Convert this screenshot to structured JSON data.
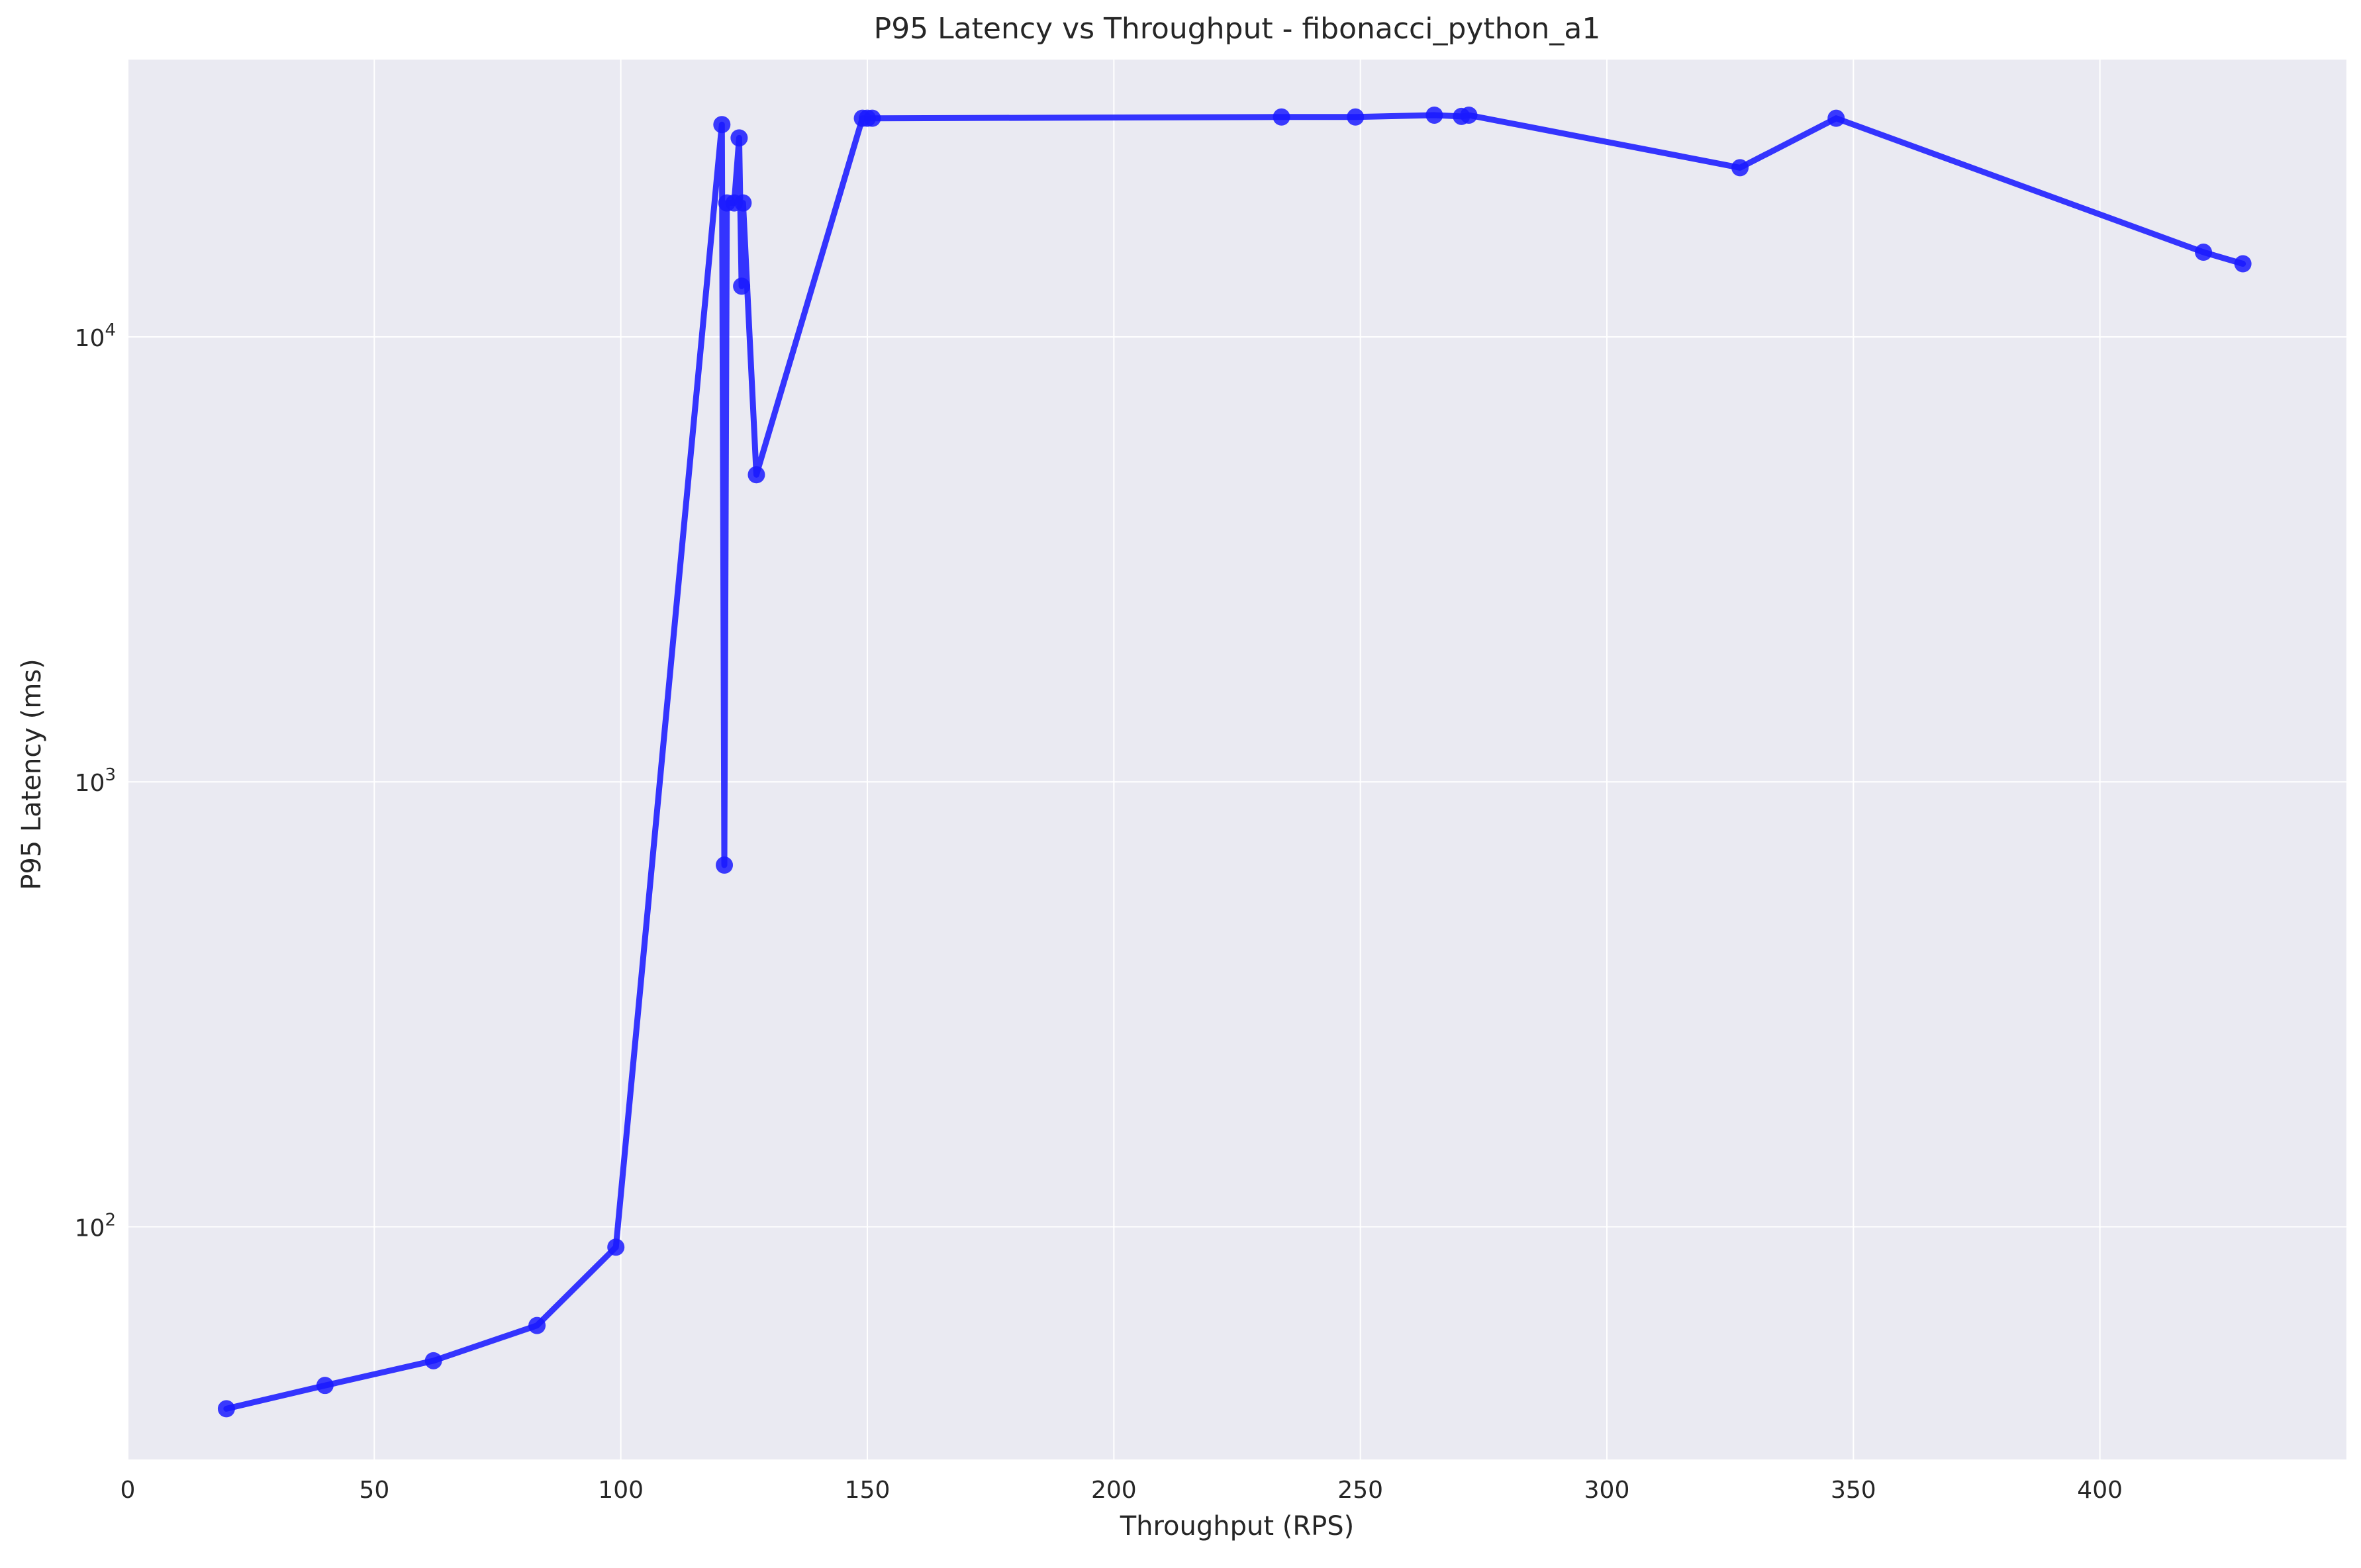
{
  "chart_data": {
    "type": "line",
    "title": "P95 Latency vs Throughput - fibonacci_python_a1",
    "xlabel": "Throughput (RPS)",
    "ylabel": "P95 Latency (ms)",
    "xlim": [
      0,
      450
    ],
    "ylim": [
      30,
      42000
    ],
    "yscale": "log",
    "grid": true,
    "legend": "none",
    "x_ticks": [
      0,
      50,
      100,
      150,
      200,
      250,
      300,
      350,
      400
    ],
    "y_ticks": [
      {
        "value": 100,
        "base": "10",
        "exp": "2"
      },
      {
        "value": 1000,
        "base": "10",
        "exp": "3"
      },
      {
        "value": 10000,
        "base": "10",
        "exp": "4"
      }
    ],
    "colors": {
      "series": "#1a1aff",
      "plot_bg": "#eaeaf2",
      "grid": "#ffffff"
    },
    "series": [
      {
        "points": [
          [
            20,
            39
          ],
          [
            40,
            44
          ],
          [
            62,
            50
          ],
          [
            83,
            60
          ],
          [
            99,
            90
          ],
          [
            120.5,
            30000
          ],
          [
            121,
            650
          ],
          [
            121.5,
            20000
          ],
          [
            123,
            20000
          ],
          [
            124,
            28000
          ],
          [
            124.5,
            13000
          ],
          [
            124.8,
            20000
          ],
          [
            127.5,
            4900
          ],
          [
            149,
            31000
          ],
          [
            150,
            31000
          ],
          [
            151,
            31000
          ],
          [
            234,
            31200
          ],
          [
            249,
            31200
          ],
          [
            265,
            31500
          ],
          [
            270.5,
            31300
          ],
          [
            272,
            31500
          ],
          [
            327,
            24000
          ],
          [
            346.5,
            31000
          ],
          [
            421,
            15500
          ],
          [
            429,
            14600
          ]
        ]
      }
    ]
  }
}
